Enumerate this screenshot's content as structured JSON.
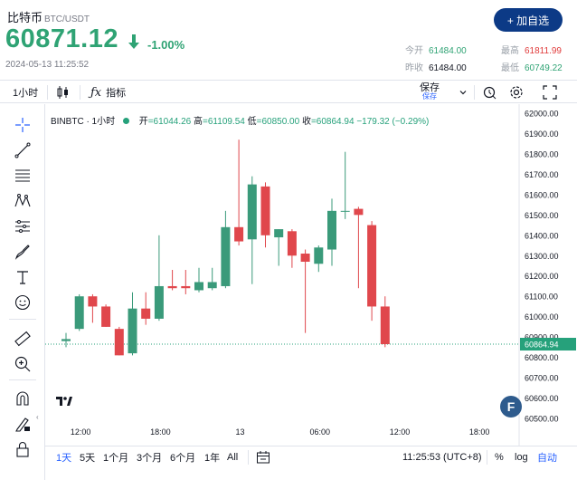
{
  "header": {
    "title": "比特币",
    "pair": "BTC/USDT",
    "add_label": "+ 加自选",
    "price": "60871.12",
    "change_pct": "-1.00%",
    "timestamp": "2024-05-13 11:25:52",
    "stats": {
      "open_label": "今开",
      "open": "61484.00",
      "high_label": "最高",
      "high": "61811.99",
      "prev_label": "昨收",
      "prev": "61484.00",
      "low_label": "最低",
      "low": "60749.22"
    },
    "colors": {
      "up": "#2fa374",
      "down": "#e03b3b"
    }
  },
  "toolbar": {
    "interval": "1小时",
    "indicators": "指标",
    "save": "保存",
    "save_sub": "保存"
  },
  "legend": {
    "symbol": "BINBTC · 1小时",
    "open_k": "开",
    "open": "=61044.26",
    "high_k": "高",
    "high": "=61109.54",
    "low_k": "低",
    "low": "=60850.00",
    "close_k": "收",
    "close": "=60864.94",
    "change": "−179.32 (−0.29%)"
  },
  "tools": [
    "crosshair-icon",
    "trend-line-icon",
    "fib-icon",
    "pattern-icon",
    "prediction-icon",
    "brush-icon",
    "text-icon",
    "emoji-icon",
    "ruler-icon",
    "zoom-in-icon",
    "magnet-icon",
    "lock-edit-icon",
    "lock-icon"
  ],
  "bottom": {
    "ranges": [
      "1天",
      "5天",
      "1个月",
      "3个月",
      "6个月",
      "1年",
      "All"
    ],
    "time": "11:25:53 (UTC+8)",
    "pct": "%",
    "log": "log",
    "auto": "自动"
  },
  "chart_data": {
    "type": "candlestick",
    "ylim": [
      60500,
      62000
    ],
    "yticks": [
      "62000.00",
      "61900.00",
      "61800.00",
      "61700.00",
      "61600.00",
      "61500.00",
      "61400.00",
      "61300.00",
      "61200.00",
      "61100.00",
      "61000.00",
      "60900.00",
      "60800.00",
      "60700.00",
      "60600.00",
      "60500.00"
    ],
    "xticks": [
      {
        "label": "12:00",
        "at": 1.1
      },
      {
        "label": "18:00",
        "at": 7.1
      },
      {
        "label": "13",
        "at": 13.1
      },
      {
        "label": "06:00",
        "at": 19.1
      },
      {
        "label": "12:00",
        "at": 25.1
      },
      {
        "label": "18:00",
        "at": 31.1
      }
    ],
    "last_price_label": "60864.94",
    "last_price": 60864.94,
    "candles": [
      {
        "o": 60880,
        "h": 60920,
        "l": 60850,
        "c": 60890
      },
      {
        "o": 60940,
        "h": 61110,
        "l": 60930,
        "c": 61100
      },
      {
        "o": 61100,
        "h": 61110,
        "l": 60970,
        "c": 61050
      },
      {
        "o": 61050,
        "h": 61060,
        "l": 60950,
        "c": 60950
      },
      {
        "o": 60940,
        "h": 60950,
        "l": 60810,
        "c": 60810
      },
      {
        "o": 60820,
        "h": 61120,
        "l": 60810,
        "c": 61040
      },
      {
        "o": 61040,
        "h": 61120,
        "l": 60960,
        "c": 60990
      },
      {
        "o": 60990,
        "h": 61400,
        "l": 60980,
        "c": 61150
      },
      {
        "o": 61150,
        "h": 61230,
        "l": 61130,
        "c": 61140
      },
      {
        "o": 61150,
        "h": 61230,
        "l": 61110,
        "c": 61140
      },
      {
        "o": 61130,
        "h": 61240,
        "l": 61120,
        "c": 61170
      },
      {
        "o": 61140,
        "h": 61240,
        "l": 61130,
        "c": 61170
      },
      {
        "o": 61150,
        "h": 61520,
        "l": 61140,
        "c": 61440
      },
      {
        "o": 61440,
        "h": 61870,
        "l": 61350,
        "c": 61370
      },
      {
        "o": 61380,
        "h": 61690,
        "l": 61160,
        "c": 61650
      },
      {
        "o": 61640,
        "h": 61660,
        "l": 61340,
        "c": 61400
      },
      {
        "o": 61390,
        "h": 61430,
        "l": 61250,
        "c": 61430
      },
      {
        "o": 61420,
        "h": 61430,
        "l": 61240,
        "c": 61300
      },
      {
        "o": 61310,
        "h": 61330,
        "l": 60920,
        "c": 61270
      },
      {
        "o": 61260,
        "h": 61350,
        "l": 61220,
        "c": 61340
      },
      {
        "o": 61330,
        "h": 61580,
        "l": 61250,
        "c": 61520
      },
      {
        "o": 61520,
        "h": 61810,
        "l": 61480,
        "c": 61520
      },
      {
        "o": 61530,
        "h": 61540,
        "l": 61140,
        "c": 61500
      },
      {
        "o": 61450,
        "h": 61470,
        "l": 60980,
        "c": 61050
      },
      {
        "o": 61050,
        "h": 61100,
        "l": 60850,
        "c": 60865
      }
    ]
  }
}
